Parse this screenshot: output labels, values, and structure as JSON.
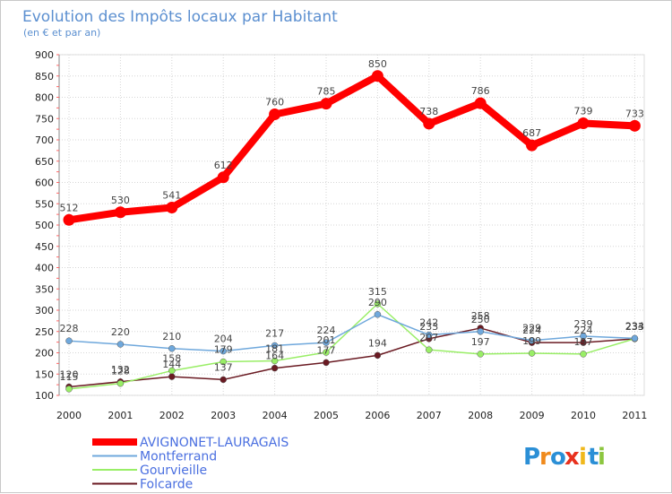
{
  "chart_data": {
    "type": "line",
    "title": "Evolution des Impôts locaux par Habitant",
    "subtitle": "(en € et par an)",
    "xlabel": "",
    "ylabel": "",
    "ylim": [
      100,
      900
    ],
    "yticks": [
      100,
      150,
      200,
      250,
      300,
      350,
      400,
      450,
      500,
      550,
      600,
      650,
      700,
      750,
      800,
      850,
      900
    ],
    "grid": true,
    "legend_position": "bottom-left",
    "categories": [
      "2000",
      "2001",
      "2002",
      "2003",
      "2004",
      "2005",
      "2006",
      "2007",
      "2008",
      "2009",
      "2010",
      "2011"
    ],
    "series": [
      {
        "name": "AVIGNONET-LAURAGAIS",
        "color": "#ff0000",
        "values": [
          512,
          530,
          541,
          612,
          760,
          785,
          850,
          738,
          786,
          687,
          739,
          733
        ],
        "labels": [
          "512",
          "530",
          "541",
          "612",
          "760",
          "785",
          "850",
          "738",
          "786",
          "687",
          "739",
          "733"
        ]
      },
      {
        "name": "Montferrand",
        "color": "#6fa8dc",
        "values": [
          228,
          220,
          210,
          204,
          217,
          224,
          290,
          242,
          250,
          229,
          239,
          234
        ],
        "labels": [
          "228",
          "220",
          "210",
          "204",
          "217",
          "224",
          "290",
          "242",
          "250",
          "229",
          "239",
          "234"
        ]
      },
      {
        "name": "Gourvieille",
        "color": "#99ee66",
        "values": [
          115,
          128,
          158,
          179,
          181,
          201,
          315,
          207,
          197,
          199,
          197,
          233
        ],
        "labels": [
          "115",
          "128",
          "158",
          "179",
          "181",
          "201",
          "315",
          "207",
          "197",
          "199",
          "197",
          "233"
        ]
      },
      {
        "name": "Folcarde",
        "color": "#6a1a22",
        "values": [
          120,
          132,
          144,
          137,
          164,
          177,
          194,
          233,
          258,
          224,
          224,
          233
        ],
        "labels": [
          "120",
          "132",
          "144",
          "137",
          "164",
          "177",
          "194",
          "233",
          "258",
          "224",
          "224",
          "233"
        ]
      }
    ]
  },
  "brand": {
    "letters": [
      "P",
      "r",
      "o",
      "x",
      "i",
      "t",
      "i"
    ],
    "colors": [
      "#2b8fd6",
      "#f08a1c",
      "#2b8fd6",
      "#e8311e",
      "#f0b81c",
      "#2b8fd6",
      "#8cc63f"
    ]
  }
}
